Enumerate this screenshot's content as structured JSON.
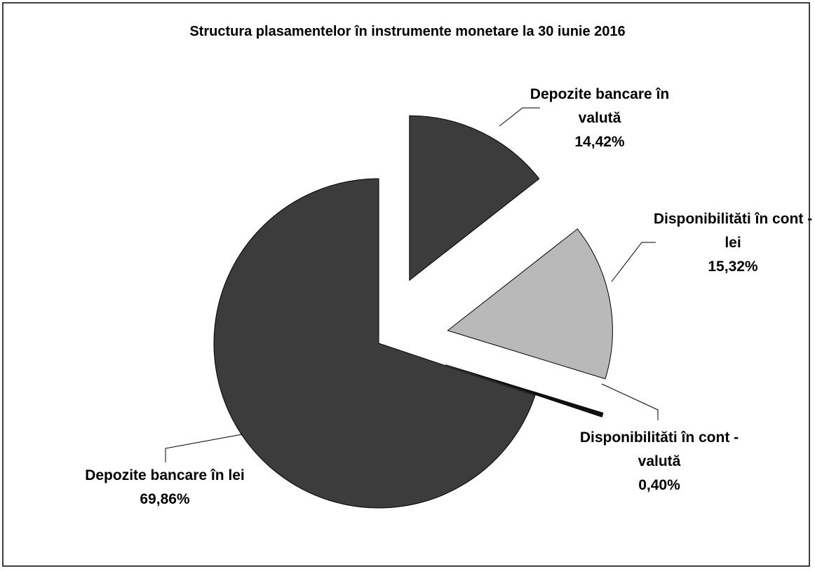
{
  "chart_data": {
    "type": "pie",
    "title": "Structura plasamentelor în instrumente monetare  la 30 iunie 2016",
    "categories": [
      "Depozite bancare în valută",
      "Disponibilităti în cont - lei",
      "Disponibilităti în cont - valută",
      "Depozite bancare în lei"
    ],
    "values": [
      14.42,
      15.32,
      0.4,
      69.86
    ],
    "value_labels": [
      "14,42%",
      "15,32%",
      "0,40%",
      "69,86%"
    ],
    "colors": [
      "#3c3c3c",
      "#b9b9b9",
      "#111111",
      "#3c3c3c"
    ]
  }
}
